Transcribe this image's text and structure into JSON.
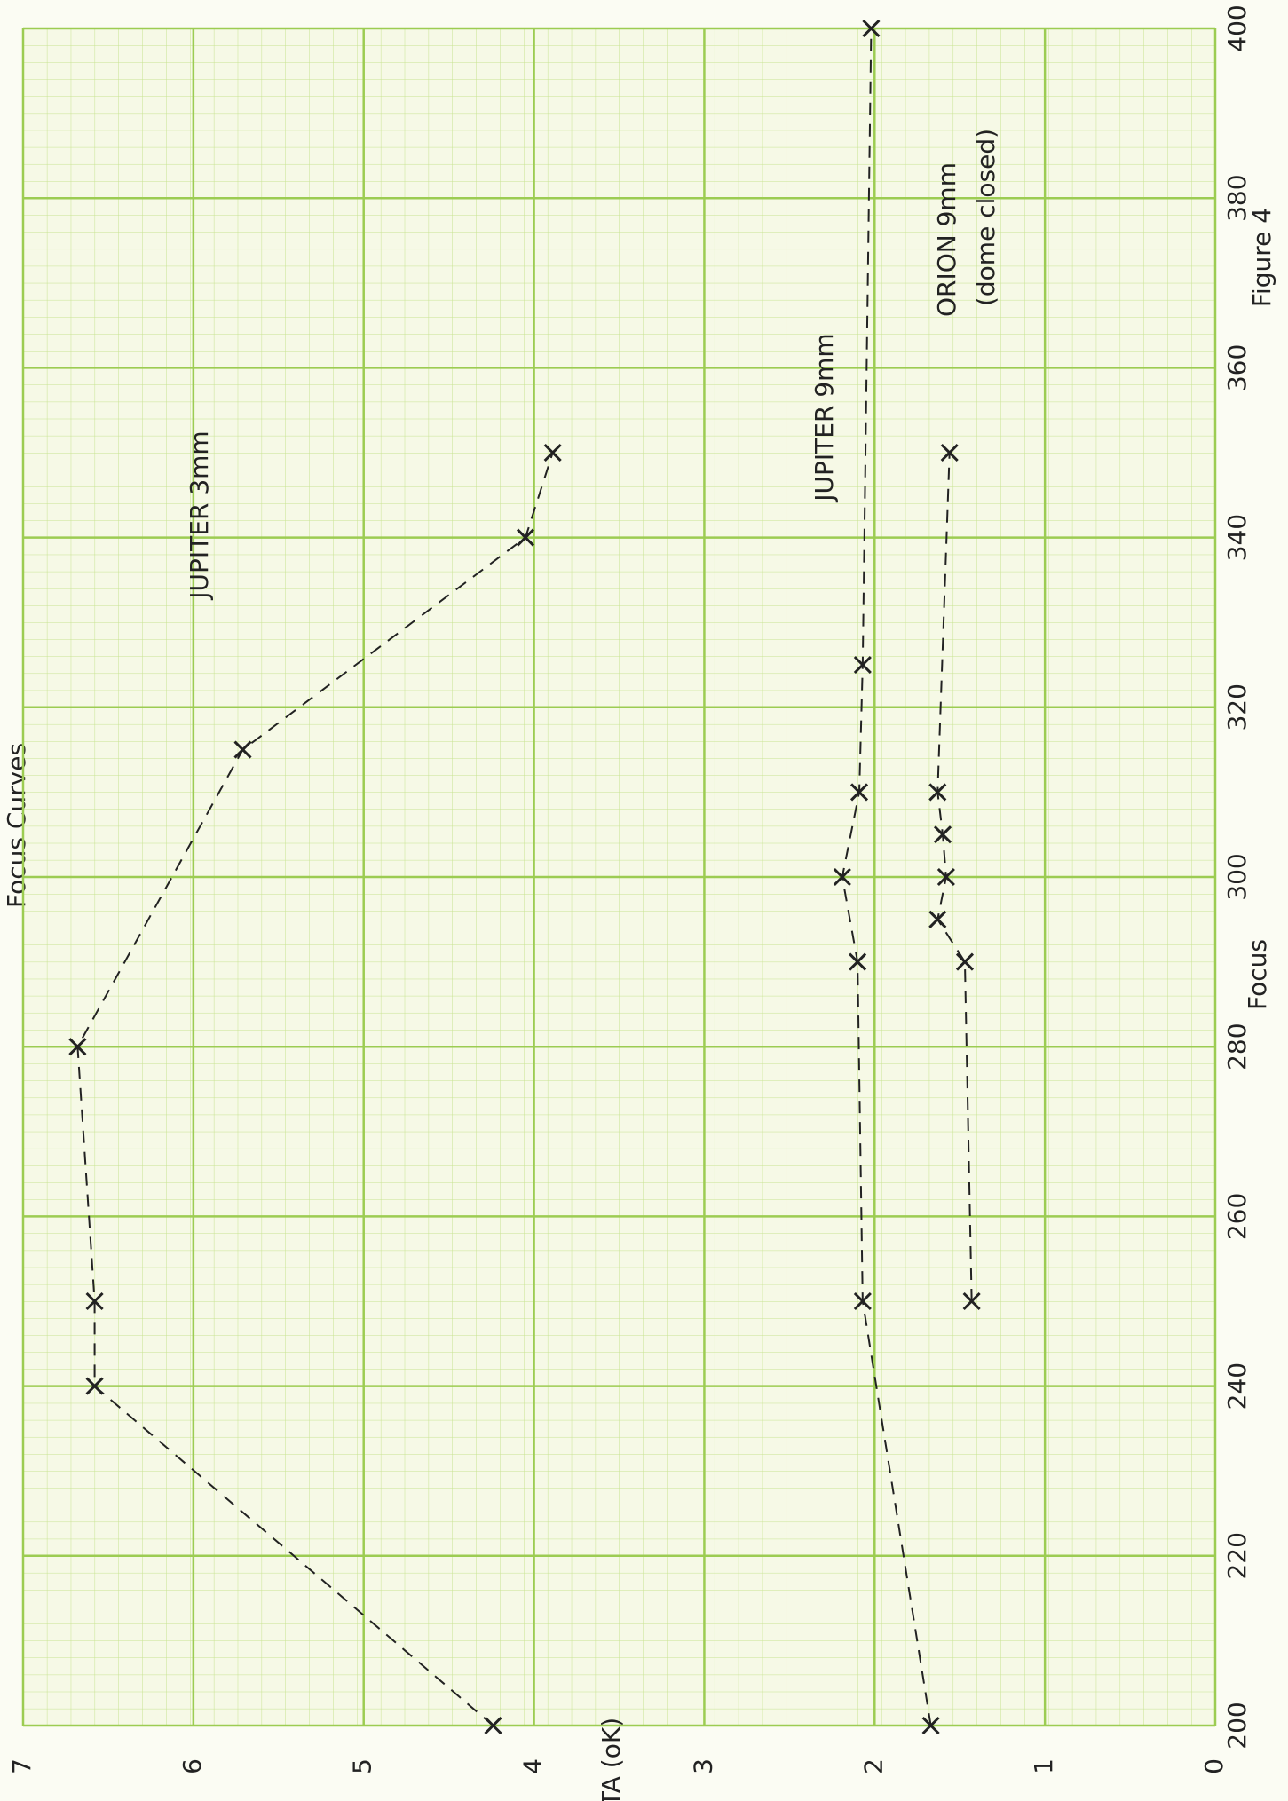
{
  "chart_data": {
    "type": "scatter",
    "title": "Focus Curves",
    "x_label": "Focus",
    "y_label": "TA (oK)",
    "figure_label": "Figure 4",
    "annotations": [
      "(dome closed)"
    ],
    "xlim": [
      200,
      400
    ],
    "xticks": [
      200,
      220,
      240,
      260,
      280,
      300,
      320,
      340,
      360,
      380,
      400
    ],
    "ylim": [
      0,
      7
    ],
    "yticks": [
      0,
      1,
      2,
      3,
      4,
      5,
      6,
      7
    ],
    "grid": true,
    "series": [
      {
        "name": "JUPITER 3mm",
        "color": "#222222",
        "x": [
          200,
          240,
          250,
          280,
          315,
          340,
          350
        ],
        "values": [
          4.24,
          6.58,
          6.58,
          6.68,
          5.71,
          4.05,
          3.89
        ]
      },
      {
        "name": "JUPITER 9mm",
        "color": "#222222",
        "x": [
          200,
          250,
          290,
          300,
          310,
          325,
          400
        ],
        "values": [
          1.67,
          2.07,
          2.1,
          2.19,
          2.09,
          2.07,
          2.02
        ]
      },
      {
        "name": "ORION 9mm",
        "color": "#222222",
        "x": [
          250,
          290,
          295,
          300,
          305,
          310,
          350
        ],
        "values": [
          1.43,
          1.47,
          1.63,
          1.58,
          1.6,
          1.63,
          1.56
        ]
      }
    ]
  }
}
